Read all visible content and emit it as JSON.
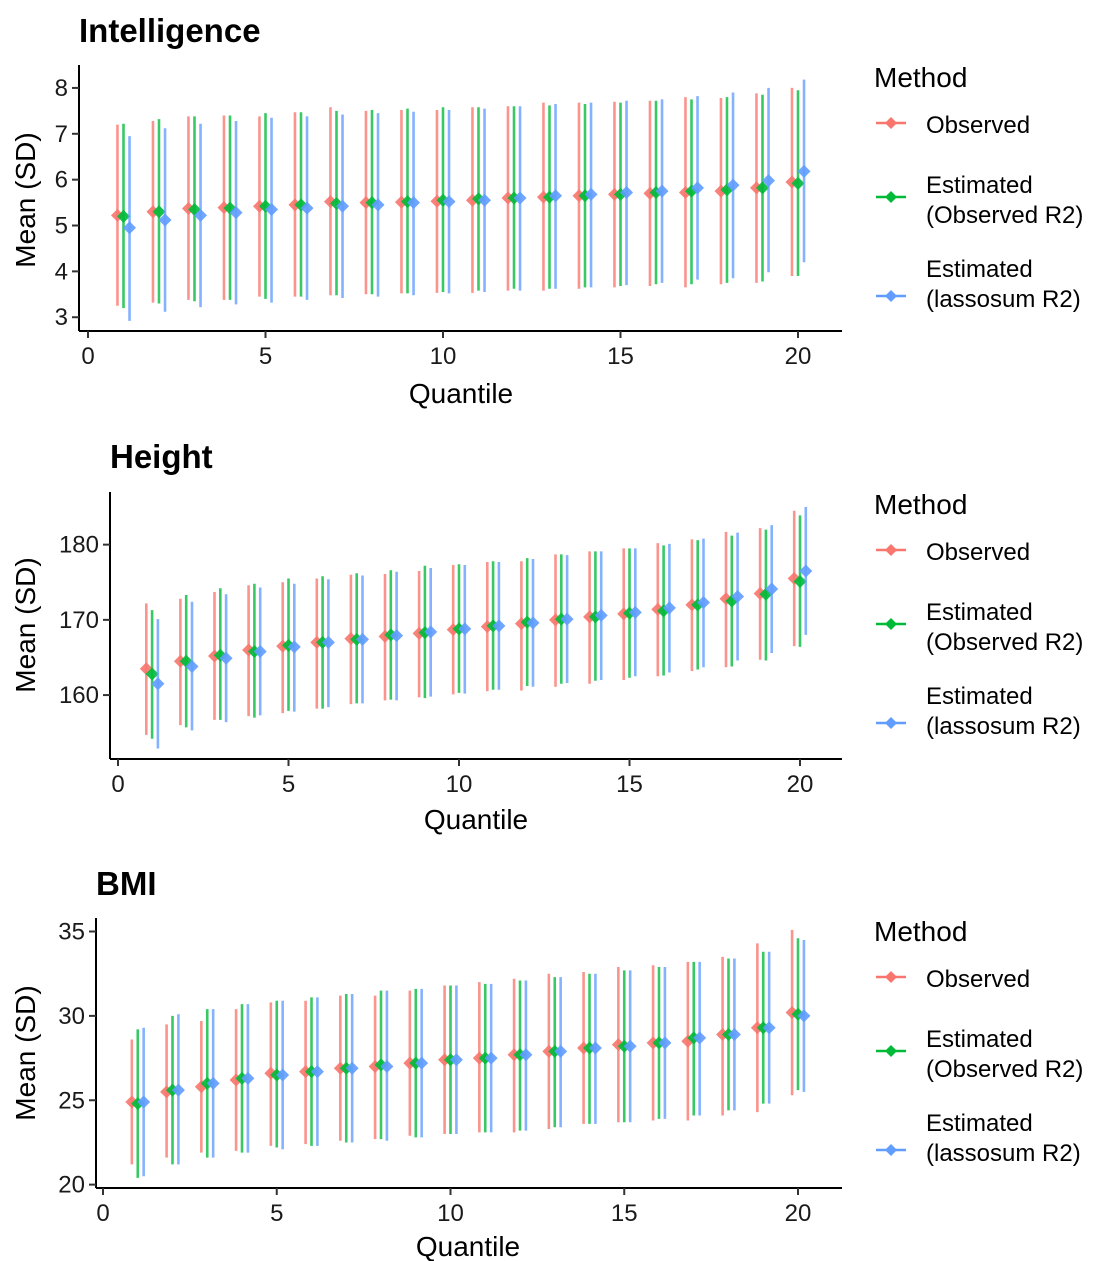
{
  "chart_data": [
    {
      "type": "errorbar",
      "title": "Intelligence",
      "xlabel": "Quantile",
      "ylabel": "Mean (SD)",
      "xlim": [
        0,
        20
      ],
      "ylim": [
        2.7,
        8.5
      ],
      "xticks": [
        0,
        5,
        10,
        15,
        20
      ],
      "yticks": [
        3,
        4,
        5,
        6,
        7,
        8
      ],
      "x": [
        1,
        2,
        3,
        4,
        5,
        6,
        7,
        8,
        9,
        10,
        11,
        12,
        13,
        14,
        15,
        16,
        17,
        18,
        19,
        20
      ],
      "series": [
        {
          "name": "Observed",
          "color": "#F8766D",
          "mean": [
            5.22,
            5.3,
            5.37,
            5.39,
            5.42,
            5.45,
            5.52,
            5.5,
            5.51,
            5.53,
            5.55,
            5.6,
            5.62,
            5.65,
            5.68,
            5.7,
            5.72,
            5.75,
            5.82,
            5.95
          ],
          "lower": [
            3.25,
            3.32,
            3.38,
            3.38,
            3.45,
            3.45,
            3.48,
            3.5,
            3.52,
            3.53,
            3.53,
            3.58,
            3.58,
            3.62,
            3.65,
            3.68,
            3.65,
            3.72,
            3.75,
            3.9
          ],
          "upper": [
            7.2,
            7.28,
            7.38,
            7.4,
            7.38,
            7.47,
            7.58,
            7.5,
            7.52,
            7.52,
            7.58,
            7.6,
            7.68,
            7.68,
            7.7,
            7.72,
            7.8,
            7.78,
            7.88,
            8.0
          ]
        },
        {
          "name": "Estimated\n(Observed R2)",
          "color": "#00BA38",
          "mean": [
            5.2,
            5.3,
            5.35,
            5.38,
            5.42,
            5.45,
            5.48,
            5.5,
            5.52,
            5.55,
            5.58,
            5.6,
            5.62,
            5.65,
            5.68,
            5.72,
            5.75,
            5.78,
            5.82,
            5.92
          ],
          "lower": [
            3.2,
            3.3,
            3.35,
            3.38,
            3.4,
            3.45,
            3.48,
            3.5,
            3.52,
            3.55,
            3.58,
            3.62,
            3.62,
            3.65,
            3.68,
            3.72,
            3.72,
            3.75,
            3.78,
            3.9
          ],
          "upper": [
            7.22,
            7.32,
            7.38,
            7.4,
            7.45,
            7.47,
            7.5,
            7.52,
            7.55,
            7.58,
            7.58,
            7.6,
            7.62,
            7.65,
            7.68,
            7.72,
            7.75,
            7.8,
            7.85,
            7.95
          ]
        },
        {
          "name": "Estimated\n(lassosum R2)",
          "color": "#619CFF",
          "mean": [
            4.95,
            5.12,
            5.22,
            5.28,
            5.35,
            5.38,
            5.42,
            5.45,
            5.5,
            5.52,
            5.55,
            5.6,
            5.65,
            5.68,
            5.72,
            5.75,
            5.82,
            5.88,
            5.98,
            6.18
          ],
          "lower": [
            2.92,
            3.12,
            3.22,
            3.28,
            3.32,
            3.38,
            3.42,
            3.45,
            3.48,
            3.52,
            3.55,
            3.58,
            3.62,
            3.65,
            3.7,
            3.75,
            3.82,
            3.85,
            3.98,
            4.2
          ],
          "upper": [
            6.95,
            7.12,
            7.22,
            7.28,
            7.35,
            7.38,
            7.42,
            7.45,
            7.48,
            7.52,
            7.55,
            7.6,
            7.65,
            7.68,
            7.72,
            7.75,
            7.82,
            7.9,
            8.0,
            8.18
          ]
        }
      ],
      "legend": {
        "title": "Method",
        "position": "right"
      }
    },
    {
      "type": "errorbar",
      "title": "Height",
      "xlabel": "Quantile",
      "ylabel": "Mean (SD)",
      "xlim": [
        0,
        20
      ],
      "ylim": [
        151.5,
        187
      ],
      "xticks": [
        0,
        5,
        10,
        15,
        20
      ],
      "yticks": [
        160,
        170,
        180
      ],
      "x": [
        1,
        2,
        3,
        4,
        5,
        6,
        7,
        8,
        9,
        10,
        11,
        12,
        13,
        14,
        15,
        16,
        17,
        18,
        19,
        20
      ],
      "series": [
        {
          "name": "Observed",
          "color": "#F8766D",
          "mean": [
            163.5,
            164.5,
            165.2,
            166.0,
            166.5,
            167.0,
            167.5,
            167.8,
            168.2,
            168.7,
            169.1,
            169.5,
            170.0,
            170.4,
            170.8,
            171.4,
            172.0,
            172.8,
            173.5,
            175.5
          ],
          "lower": [
            154.7,
            156.0,
            156.7,
            157.2,
            157.6,
            158.2,
            158.8,
            159.3,
            159.7,
            160.1,
            160.5,
            160.6,
            161.1,
            161.5,
            162.0,
            162.5,
            163.2,
            163.7,
            164.7,
            166.5
          ],
          "upper": [
            172.2,
            172.8,
            173.7,
            174.6,
            175.0,
            175.5,
            176.0,
            176.1,
            176.5,
            177.3,
            177.7,
            177.8,
            178.7,
            179.1,
            179.5,
            180.2,
            180.7,
            181.7,
            182.2,
            184.5
          ]
        },
        {
          "name": "Estimated\n(Observed R2)",
          "color": "#00BA38",
          "mean": [
            162.8,
            164.5,
            165.3,
            165.8,
            166.6,
            167.0,
            167.4,
            168.0,
            168.3,
            168.8,
            169.2,
            169.7,
            170.1,
            170.4,
            170.9,
            171.2,
            172.0,
            172.5,
            173.4,
            175.1
          ],
          "lower": [
            154.2,
            155.7,
            156.7,
            157.0,
            157.9,
            158.2,
            158.9,
            159.4,
            159.6,
            160.3,
            160.7,
            161.2,
            161.5,
            161.9,
            162.3,
            162.6,
            163.4,
            163.8,
            164.6,
            166.4
          ],
          "upper": [
            171.3,
            173.3,
            174.2,
            174.8,
            175.5,
            175.8,
            176.2,
            176.6,
            177.2,
            177.4,
            177.8,
            178.2,
            178.7,
            179.1,
            179.5,
            179.9,
            180.6,
            181.2,
            182.0,
            183.9
          ]
        },
        {
          "name": "Estimated\n(lassosum R2)",
          "color": "#619CFF",
          "mean": [
            161.5,
            163.8,
            164.9,
            165.8,
            166.4,
            167.0,
            167.4,
            167.9,
            168.4,
            168.8,
            169.2,
            169.6,
            170.1,
            170.6,
            171.0,
            171.6,
            172.3,
            173.1,
            174.1,
            176.5
          ],
          "lower": [
            152.9,
            155.3,
            156.4,
            157.3,
            157.8,
            158.4,
            158.9,
            159.3,
            159.8,
            160.2,
            160.7,
            161.1,
            161.6,
            162.0,
            162.5,
            163.0,
            163.7,
            164.6,
            165.6,
            168.0
          ],
          "upper": [
            170.1,
            172.4,
            173.4,
            174.3,
            174.8,
            175.4,
            175.9,
            176.4,
            176.9,
            177.3,
            177.7,
            178.1,
            178.6,
            179.1,
            179.5,
            180.1,
            180.8,
            181.6,
            182.6,
            185.0
          ]
        }
      ],
      "legend": {
        "title": "Method",
        "position": "right"
      }
    },
    {
      "type": "errorbar",
      "title": "BMI",
      "xlabel": "Quantile",
      "ylabel": "Mean (SD)",
      "xlim": [
        0,
        20
      ],
      "ylim": [
        19.8,
        35.8
      ],
      "xticks": [
        0,
        5,
        10,
        15,
        20
      ],
      "yticks": [
        20,
        25,
        30,
        35
      ],
      "x": [
        1,
        2,
        3,
        4,
        5,
        6,
        7,
        8,
        9,
        10,
        11,
        12,
        13,
        14,
        15,
        16,
        17,
        18,
        19,
        20
      ],
      "series": [
        {
          "name": "Observed",
          "color": "#F8766D",
          "mean": [
            24.9,
            25.5,
            25.8,
            26.2,
            26.6,
            26.7,
            26.9,
            27.0,
            27.2,
            27.4,
            27.5,
            27.7,
            27.9,
            28.1,
            28.3,
            28.4,
            28.5,
            28.9,
            29.3,
            30.2
          ],
          "lower": [
            21.2,
            21.6,
            21.9,
            22.0,
            22.3,
            22.4,
            22.6,
            22.7,
            22.9,
            23.0,
            23.1,
            23.1,
            23.3,
            23.6,
            23.7,
            23.8,
            23.8,
            24.1,
            24.3,
            25.3
          ],
          "upper": [
            28.6,
            29.5,
            29.7,
            30.4,
            30.8,
            30.9,
            31.2,
            31.2,
            31.5,
            31.8,
            32.0,
            32.2,
            32.5,
            32.6,
            32.9,
            33.0,
            33.2,
            33.5,
            34.3,
            35.1
          ]
        },
        {
          "name": "Estimated\n(Observed R2)",
          "color": "#00BA38",
          "mean": [
            24.8,
            25.6,
            26.0,
            26.3,
            26.5,
            26.7,
            26.9,
            27.1,
            27.2,
            27.4,
            27.5,
            27.7,
            27.9,
            28.1,
            28.2,
            28.4,
            28.7,
            28.9,
            29.3,
            30.1
          ],
          "lower": [
            20.4,
            21.2,
            21.6,
            21.9,
            22.2,
            22.3,
            22.5,
            22.7,
            22.8,
            23.0,
            23.1,
            23.2,
            23.4,
            23.6,
            23.7,
            23.9,
            24.1,
            24.4,
            24.8,
            25.6
          ],
          "upper": [
            29.2,
            30.0,
            30.4,
            30.7,
            30.9,
            31.1,
            31.3,
            31.5,
            31.6,
            31.8,
            31.9,
            32.1,
            32.3,
            32.5,
            32.7,
            32.9,
            33.2,
            33.4,
            33.8,
            34.6
          ]
        },
        {
          "name": "Estimated\n(lassosum R2)",
          "color": "#619CFF",
          "mean": [
            24.9,
            25.6,
            26.0,
            26.3,
            26.5,
            26.7,
            26.9,
            27.0,
            27.2,
            27.4,
            27.5,
            27.7,
            27.9,
            28.1,
            28.2,
            28.4,
            28.7,
            28.9,
            29.3,
            30.0
          ],
          "lower": [
            20.5,
            21.2,
            21.6,
            21.9,
            22.1,
            22.3,
            22.5,
            22.6,
            22.8,
            23.0,
            23.1,
            23.2,
            23.4,
            23.6,
            23.7,
            23.9,
            24.1,
            24.4,
            24.8,
            25.5
          ],
          "upper": [
            29.3,
            30.1,
            30.4,
            30.7,
            30.9,
            31.1,
            31.3,
            31.5,
            31.6,
            31.8,
            31.9,
            32.1,
            32.3,
            32.5,
            32.7,
            32.9,
            33.2,
            33.4,
            33.8,
            34.5
          ]
        }
      ],
      "legend": {
        "title": "Method",
        "position": "right"
      }
    }
  ]
}
